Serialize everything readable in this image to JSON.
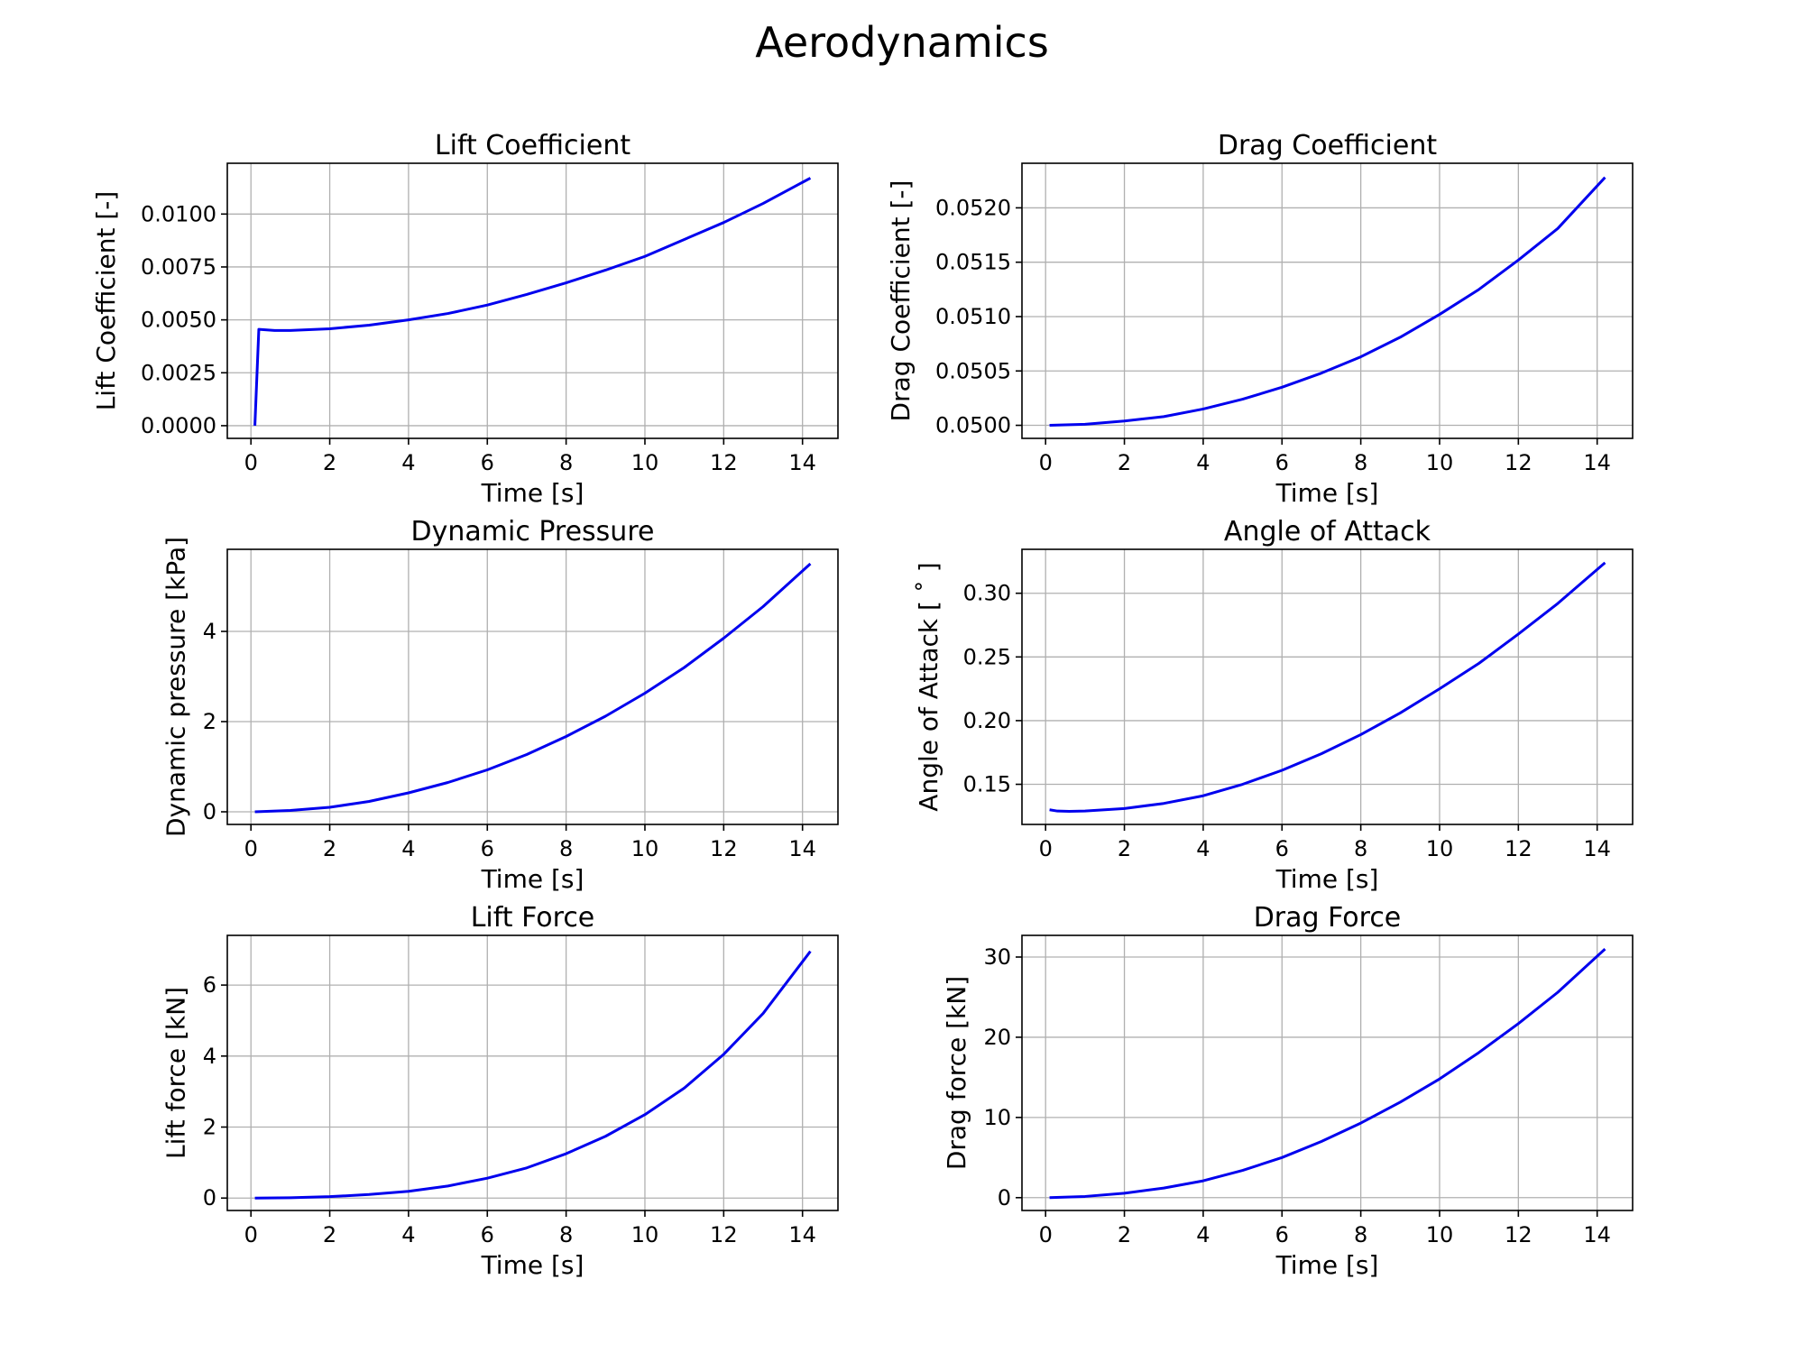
{
  "figure": {
    "title": "Aerodynamics",
    "line_color": "#0000ee"
  },
  "chart_data": [
    {
      "type": "line",
      "title": "Lift Coefficient",
      "xlabel": "Time [s]",
      "ylabel": "Lift Coefficient [-]",
      "xlim": [
        -0.6,
        14.9
      ],
      "ylim": [
        -0.0006,
        0.0124
      ],
      "xticks": [
        0,
        2,
        4,
        6,
        8,
        10,
        12,
        14
      ],
      "yticks": [
        0.0,
        0.0025,
        0.005,
        0.0075,
        0.01
      ],
      "ytick_labels": [
        "0.0000",
        "0.0025",
        "0.0050",
        "0.0075",
        "0.0100"
      ],
      "grid": true,
      "series": [
        {
          "x": [
            0.1,
            0.2,
            0.6,
            1,
            2,
            3,
            4,
            5,
            6,
            7,
            8,
            9,
            10,
            11,
            12,
            13,
            14.2
          ],
          "y": [
            0.0,
            0.00455,
            0.0045,
            0.0045,
            0.00458,
            0.00475,
            0.005,
            0.0053,
            0.0057,
            0.0062,
            0.00675,
            0.00735,
            0.008,
            0.0088,
            0.0096,
            0.0105,
            0.0117
          ]
        }
      ]
    },
    {
      "type": "line",
      "title": "Drag Coefficient",
      "xlabel": "Time [s]",
      "ylabel": "Drag Coefficient [-]",
      "xlim": [
        -0.6,
        14.9
      ],
      "ylim": [
        0.04988,
        0.05241
      ],
      "xticks": [
        0,
        2,
        4,
        6,
        8,
        10,
        12,
        14
      ],
      "yticks": [
        0.05,
        0.0505,
        0.051,
        0.0515,
        0.052
      ],
      "ytick_labels": [
        "0.0500",
        "0.0505",
        "0.0510",
        "0.0515",
        "0.0520"
      ],
      "grid": true,
      "series": [
        {
          "x": [
            0.1,
            1,
            2,
            3,
            4,
            5,
            6,
            7,
            8,
            9,
            10,
            11,
            12,
            13,
            14.2
          ],
          "y": [
            0.05,
            0.05001,
            0.05004,
            0.05008,
            0.05015,
            0.05024,
            0.05035,
            0.05048,
            0.05063,
            0.05081,
            0.05102,
            0.05125,
            0.05152,
            0.05181,
            0.05228
          ]
        }
      ]
    },
    {
      "type": "line",
      "title": "Dynamic Pressure",
      "xlabel": "Time [s]",
      "ylabel": "Dynamic pressure [kPa]",
      "xlim": [
        -0.6,
        14.9
      ],
      "ylim": [
        -0.28,
        5.82
      ],
      "xticks": [
        0,
        2,
        4,
        6,
        8,
        10,
        12,
        14
      ],
      "yticks": [
        0,
        2,
        4
      ],
      "ytick_labels": [
        "0",
        "2",
        "4"
      ],
      "grid": true,
      "series": [
        {
          "x": [
            0.1,
            1,
            2,
            3,
            4,
            5,
            6,
            7,
            8,
            9,
            10,
            11,
            12,
            13,
            14.2
          ],
          "y": [
            0.0,
            0.03,
            0.1,
            0.23,
            0.42,
            0.65,
            0.93,
            1.27,
            1.67,
            2.12,
            2.63,
            3.2,
            3.85,
            4.55,
            5.5
          ]
        }
      ]
    },
    {
      "type": "line",
      "title": "Angle of Attack",
      "xlabel": "Time [s]",
      "ylabel": "Angle of Attack [ ˚ ]",
      "xlim": [
        -0.6,
        14.9
      ],
      "ylim": [
        0.1185,
        0.3345
      ],
      "xticks": [
        0,
        2,
        4,
        6,
        8,
        10,
        12,
        14
      ],
      "yticks": [
        0.15,
        0.2,
        0.25,
        0.3
      ],
      "ytick_labels": [
        "0.15",
        "0.20",
        "0.25",
        "0.30"
      ],
      "grid": true,
      "series": [
        {
          "x": [
            0.1,
            0.3,
            0.6,
            1,
            2,
            3,
            4,
            5,
            6,
            7,
            8,
            9,
            10,
            11,
            12,
            13,
            14.2
          ],
          "y": [
            0.13,
            0.129,
            0.1288,
            0.129,
            0.131,
            0.135,
            0.141,
            0.15,
            0.161,
            0.174,
            0.189,
            0.206,
            0.225,
            0.245,
            0.268,
            0.292,
            0.324
          ]
        }
      ]
    },
    {
      "type": "line",
      "title": "Lift Force",
      "xlabel": "Time [s]",
      "ylabel": "Lift force [kN]",
      "xlim": [
        -0.6,
        14.9
      ],
      "ylim": [
        -0.35,
        7.4
      ],
      "xticks": [
        0,
        2,
        4,
        6,
        8,
        10,
        12,
        14
      ],
      "yticks": [
        0,
        2,
        4,
        6
      ],
      "ytick_labels": [
        "0",
        "2",
        "4",
        "6"
      ],
      "grid": true,
      "series": [
        {
          "x": [
            0.1,
            1,
            2,
            3,
            4,
            5,
            6,
            7,
            8,
            9,
            10,
            11,
            12,
            13,
            14.2
          ],
          "y": [
            0.0,
            0.01,
            0.04,
            0.1,
            0.19,
            0.34,
            0.56,
            0.85,
            1.25,
            1.74,
            2.35,
            3.1,
            4.05,
            5.2,
            6.95
          ]
        }
      ]
    },
    {
      "type": "line",
      "title": "Drag Force",
      "xlabel": "Time [s]",
      "ylabel": "Drag force [kN]",
      "xlim": [
        -0.6,
        14.9
      ],
      "ylim": [
        -1.6,
        32.7
      ],
      "xticks": [
        0,
        2,
        4,
        6,
        8,
        10,
        12,
        14
      ],
      "yticks": [
        0,
        10,
        20,
        30
      ],
      "ytick_labels": [
        "0",
        "10",
        "20",
        "30"
      ],
      "grid": true,
      "series": [
        {
          "x": [
            0.1,
            1,
            2,
            3,
            4,
            5,
            6,
            7,
            8,
            9,
            10,
            11,
            12,
            13,
            14.2
          ],
          "y": [
            0.0,
            0.15,
            0.55,
            1.2,
            2.1,
            3.4,
            5.0,
            7.0,
            9.3,
            11.9,
            14.8,
            18.1,
            21.7,
            25.6,
            31.0
          ]
        }
      ]
    }
  ]
}
